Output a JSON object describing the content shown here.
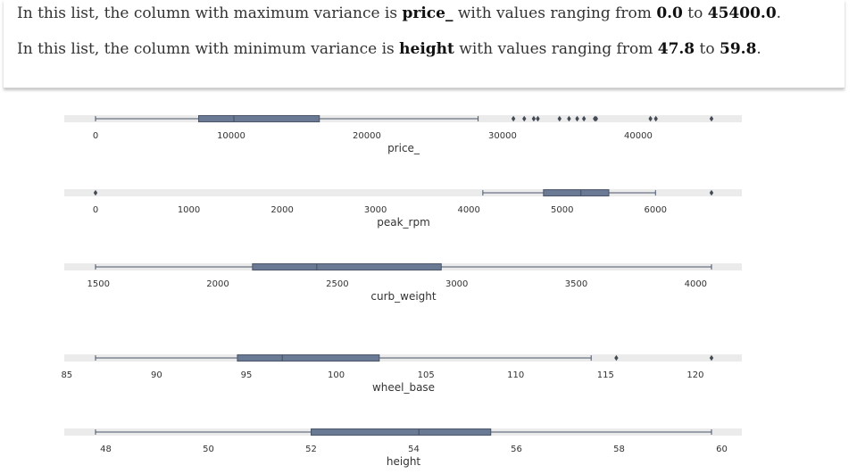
{
  "summary": {
    "max_prefix": "In this list, the column with maximum variance is ",
    "max_col": "price_",
    "max_mid": " with values ranging from ",
    "max_lo": "0.0",
    "max_to": " to ",
    "max_hi": "45400.0",
    "max_end": ".",
    "min_prefix": "In this list, the column with minimum variance is ",
    "min_col": "height",
    "min_mid": " with values ranging from ",
    "min_lo": "47.8",
    "min_to": " to ",
    "min_hi": "59.8",
    "min_end": "."
  },
  "colors": {
    "box_fill": "#6b7a94",
    "box_edge": "#4a5568",
    "band": "#ebebeb",
    "outlier": "#444b55"
  },
  "chart_data": [
    {
      "type": "boxplot",
      "xlabel": "price_",
      "xlim": [
        0,
        45400
      ],
      "ticks": [
        0,
        10000,
        20000,
        30000,
        40000
      ],
      "tick_labels": [
        "0",
        "10000",
        "20000",
        "30000",
        "40000"
      ],
      "whisker_low": 0,
      "q1": 7600,
      "median": 10200,
      "q3": 16500,
      "whisker_high": 28200,
      "outliers": [
        30800,
        31600,
        32300,
        32600,
        34200,
        34900,
        35500,
        36000,
        36800,
        36900,
        40900,
        41300,
        45400
      ]
    },
    {
      "type": "boxplot",
      "xlabel": "peak_rpm",
      "xlim": [
        0,
        6600
      ],
      "ticks": [
        0,
        1000,
        2000,
        3000,
        4000,
        5000,
        6000
      ],
      "tick_labels": [
        "0",
        "1000",
        "2000",
        "3000",
        "4000",
        "5000",
        "6000"
      ],
      "whisker_low": 4150,
      "q1": 4800,
      "median": 5200,
      "q3": 5500,
      "whisker_high": 6000,
      "outliers": [
        0,
        6600
      ]
    },
    {
      "type": "boxplot",
      "xlabel": "curb_weight",
      "xlim": [
        1488,
        4066
      ],
      "ticks": [
        1500,
        2000,
        2500,
        3000,
        3500,
        4000
      ],
      "tick_labels": [
        "1500",
        "2000",
        "2500",
        "3000",
        "3500",
        "4000"
      ],
      "whisker_low": 1488,
      "q1": 2145,
      "median": 2414,
      "q3": 2935,
      "whisker_high": 4066,
      "outliers": []
    },
    {
      "type": "boxplot",
      "xlabel": "wheel_base",
      "xlim": [
        86.6,
        120.9
      ],
      "ticks": [
        85,
        90,
        95,
        100,
        105,
        110,
        115,
        120
      ],
      "tick_labels": [
        "85",
        "90",
        "95",
        "100",
        "105",
        "110",
        "115",
        "120"
      ],
      "whisker_low": 86.6,
      "q1": 94.5,
      "median": 97.0,
      "q3": 102.4,
      "whisker_high": 114.2,
      "outliers": [
        115.6,
        120.9
      ]
    },
    {
      "type": "boxplot",
      "xlabel": "height",
      "xlim": [
        47.8,
        59.8
      ],
      "ticks": [
        48,
        50,
        52,
        54,
        56,
        58,
        60
      ],
      "tick_labels": [
        "48",
        "50",
        "52",
        "54",
        "56",
        "58",
        "60"
      ],
      "whisker_low": 47.8,
      "q1": 52.0,
      "median": 54.1,
      "q3": 55.5,
      "whisker_high": 59.8,
      "outliers": []
    }
  ]
}
